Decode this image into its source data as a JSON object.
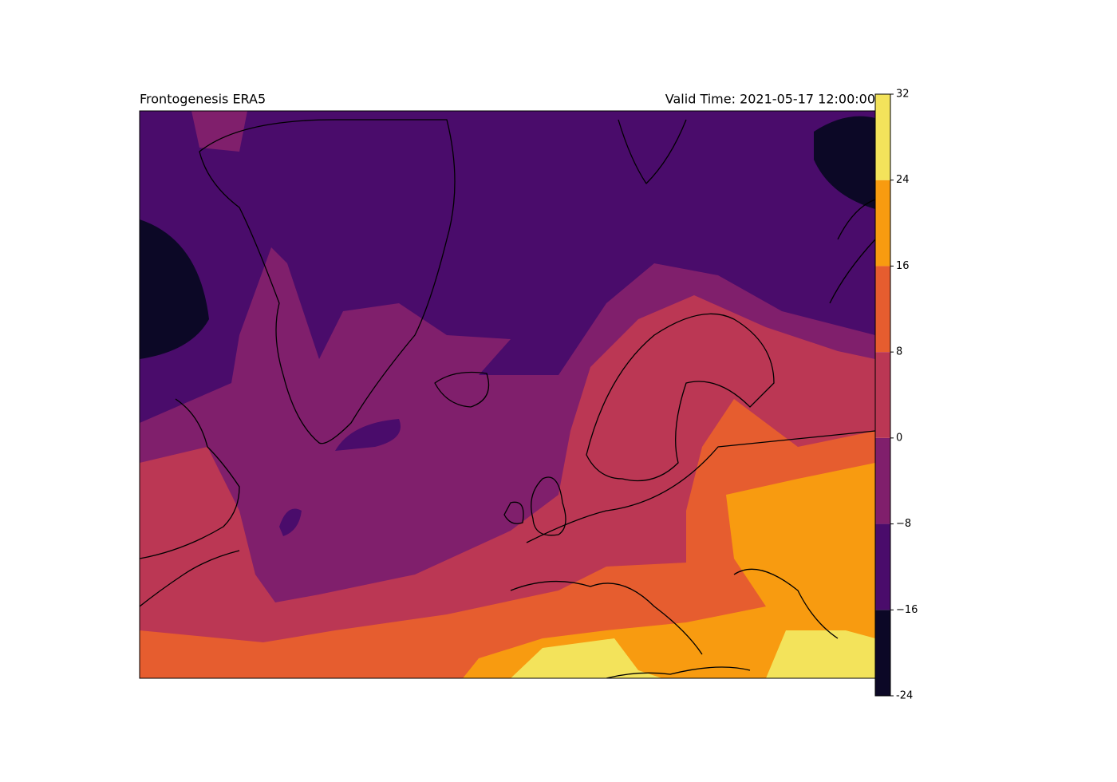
{
  "title": "Frontogenesis ERA5",
  "valid_time": "Valid Time: 2021-05-17 12:00:00",
  "colorbar": {
    "ticks": [
      -24,
      {
        "value": -16,
        "label": "−16"
      },
      {
        "value": -8,
        "label": "−8"
      },
      0,
      8,
      16,
      24,
      32
    ],
    "colors": [
      "#0c0826",
      "#4a0c6b",
      "#801f6c",
      "#bb3754",
      "#e65d2f",
      "#f89b10",
      "#f3e35b"
    ]
  }
}
